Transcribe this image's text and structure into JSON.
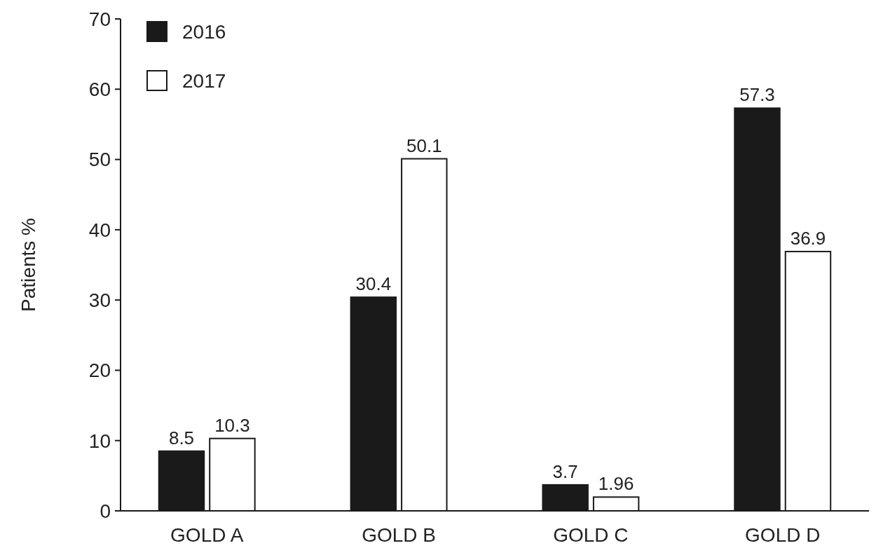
{
  "chart_data": {
    "type": "bar",
    "ylabel": "Patients %",
    "categories": [
      "GOLD A",
      "GOLD B",
      "GOLD C",
      "GOLD D"
    ],
    "series": [
      {
        "name": "2016",
        "color": "#1a1a1a",
        "values": [
          8.5,
          30.4,
          3.7,
          57.3
        ]
      },
      {
        "name": "2017",
        "color": "#ffffff",
        "values": [
          10.3,
          50.1,
          1.96,
          36.9
        ]
      }
    ],
    "ylim": [
      0,
      70
    ],
    "yticks": [
      0,
      10,
      20,
      30,
      40,
      50,
      60,
      70
    ],
    "grid": false,
    "legend": "top left",
    "data_labels": true
  }
}
